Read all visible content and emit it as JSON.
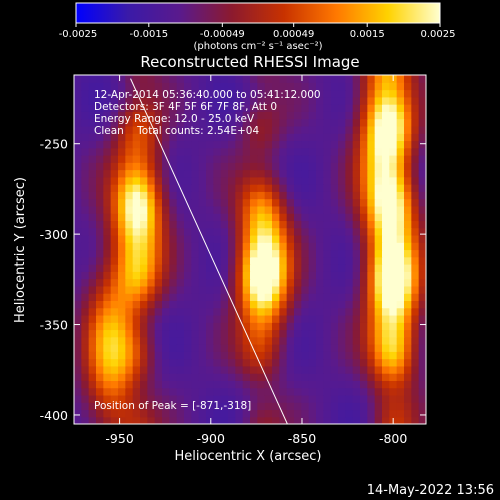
{
  "colorbar": {
    "ticks": [
      "-0.0025",
      "-0.0015",
      "-0.00049",
      "0.00049",
      "0.0015",
      "0.0025"
    ],
    "units": "(photons cm⁻² s⁻¹ asec⁻²)",
    "colormap": [
      "#0000ff",
      "#3a1aa8",
      "#5a1a8c",
      "#8c1a2e",
      "#c83200",
      "#ff7800",
      "#ffd200",
      "#ffffd0"
    ]
  },
  "chart_data": {
    "type": "heatmap",
    "title": "Reconstructed RHESSI Image",
    "xlabel": "Heliocentric X (arcsec)",
    "ylabel": "Heliocentric Y (arcsec)",
    "x_ticks": [
      "-950",
      "-900",
      "-850",
      "-800"
    ],
    "y_ticks": [
      "-250",
      "-300",
      "-350",
      "-400"
    ],
    "x_tick_values": [
      -950,
      -900,
      -850,
      -800
    ],
    "y_tick_values": [
      -250,
      -300,
      -350,
      -400
    ],
    "xlim": [
      -975,
      -782
    ],
    "ylim": [
      -405,
      -212
    ],
    "value_range": [
      -0.0025,
      0.0025
    ],
    "sources": [
      {
        "x": -871,
        "y": -318,
        "peak": 0.0025
      },
      {
        "x": -940,
        "y": -290,
        "peak": 0.0017
      },
      {
        "x": -955,
        "y": -365,
        "peak": 0.0012
      },
      {
        "x": -800,
        "y": -330,
        "peak": 0.002
      },
      {
        "x": -805,
        "y": -245,
        "peak": 0.0018
      }
    ],
    "limb_line": [
      [
        -944,
        -214
      ],
      [
        -858,
        -405
      ]
    ],
    "annotations": {
      "time_range": "12-Apr-2014 05:36:40.000 to 05:41:12.000",
      "detectors": "Detectors: 3F 4F 5F 6F 7F 8F, Att 0",
      "energy": "Energy Range: 12.0 - 25.0 keV",
      "clean": "Clean    Total counts: 2.54E+04",
      "peak": "Position of Peak = [-871,-318]"
    }
  },
  "footer": {
    "date": "14-May-2022 13:56"
  }
}
